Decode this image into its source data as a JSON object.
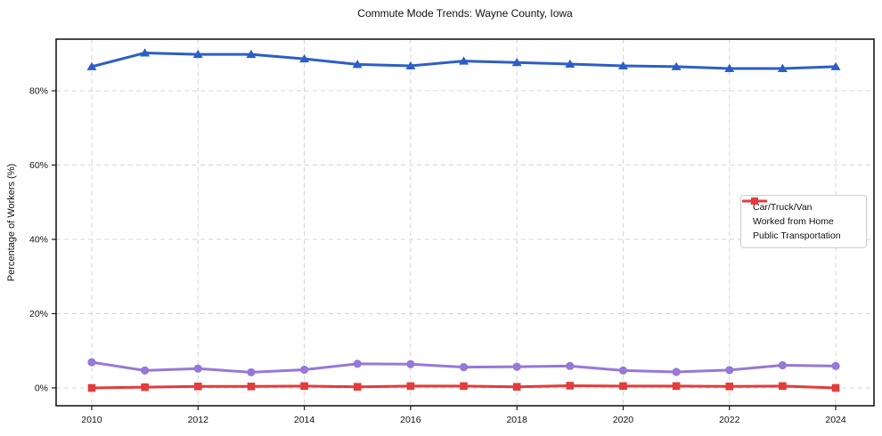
{
  "figure": {
    "title": "Commute Mode Trends: Wayne County, Iowa",
    "ylabel": "Percentage of Workers (%)"
  },
  "chart_data": {
    "type": "line",
    "title": "Commute Mode Trends: Wayne County, Iowa",
    "xlabel": "",
    "ylabel": "Percentage of Workers (%)",
    "x": [
      2010,
      2011,
      2012,
      2013,
      2014,
      2015,
      2016,
      2017,
      2018,
      2019,
      2020,
      2021,
      2022,
      2023,
      2024
    ],
    "series": [
      {
        "name": "Car/Truck/Van",
        "color": "#2c5fc5",
        "marker": "triangle",
        "values": [
          86.5,
          90.2,
          89.8,
          89.8,
          88.6,
          87.1,
          86.7,
          88.0,
          87.6,
          87.2,
          86.7,
          86.5,
          86.0,
          86.0,
          86.5
        ]
      },
      {
        "name": "Worked from Home",
        "color": "#9678d8",
        "marker": "circle",
        "values": [
          6.9,
          4.7,
          5.2,
          4.2,
          4.9,
          6.5,
          6.4,
          5.6,
          5.7,
          5.9,
          4.7,
          4.3,
          4.8,
          6.1,
          5.9
        ]
      },
      {
        "name": "Public Transportation",
        "color": "#e23c3c",
        "marker": "square",
        "values": [
          0.0,
          0.2,
          0.4,
          0.4,
          0.5,
          0.3,
          0.5,
          0.5,
          0.3,
          0.6,
          0.5,
          0.5,
          0.4,
          0.5,
          0.0
        ]
      }
    ],
    "xticks": {
      "values": [
        2010,
        2012,
        2014,
        2016,
        2018,
        2020,
        2022,
        2024
      ],
      "labels": [
        "2010",
        "2012",
        "2014",
        "2016",
        "2018",
        "2020",
        "2022",
        "2024"
      ]
    },
    "yticks": {
      "values": [
        0,
        20,
        40,
        60,
        80
      ],
      "labels": [
        "0%",
        "20%",
        "40%",
        "60%",
        "80%"
      ]
    },
    "xlim": [
      2009.33,
      2024.72
    ],
    "ylim": [
      -4.8,
      93.9
    ],
    "grid": true,
    "grid_style": "dashed",
    "legend": {
      "position": "center-right"
    }
  },
  "style": {
    "grid_color": "#d4d4d4",
    "axis_color": "#1a1a1a",
    "tick_label_color": "#111111",
    "background": "#ffffff"
  }
}
